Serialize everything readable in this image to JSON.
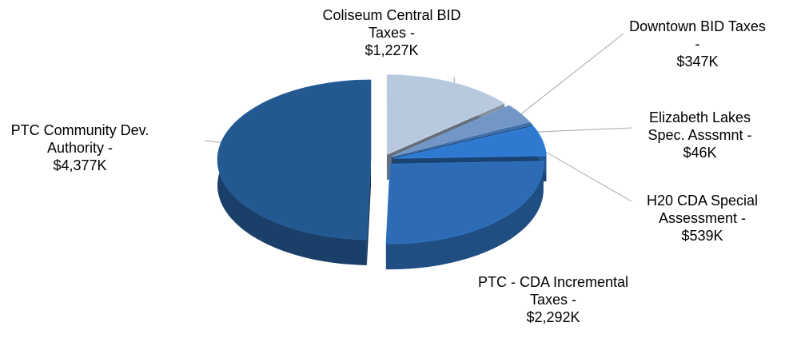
{
  "chart_data": {
    "type": "pie",
    "categories": [
      "Coliseum Central BID Taxes -",
      "Downtown BID Taxes -",
      "Elizabeth Lakes Spec. Asssmnt -",
      "H20 CDA Special Assessment -",
      "PTC - CDA Incremental Taxes -",
      "PTC Community Dev. Authority -"
    ],
    "values": [
      1227,
      347,
      46,
      539,
      2292,
      4377
    ],
    "value_labels": [
      "$1,227K",
      "$347K",
      "$46K",
      "$539K",
      "$2,292K",
      "$4,377K"
    ],
    "colors": [
      "#b9c9dd",
      "#7297c6",
      "#3f6fa8",
      "#2f7ad0",
      "#2d6cb5",
      "#245890"
    ]
  }
}
